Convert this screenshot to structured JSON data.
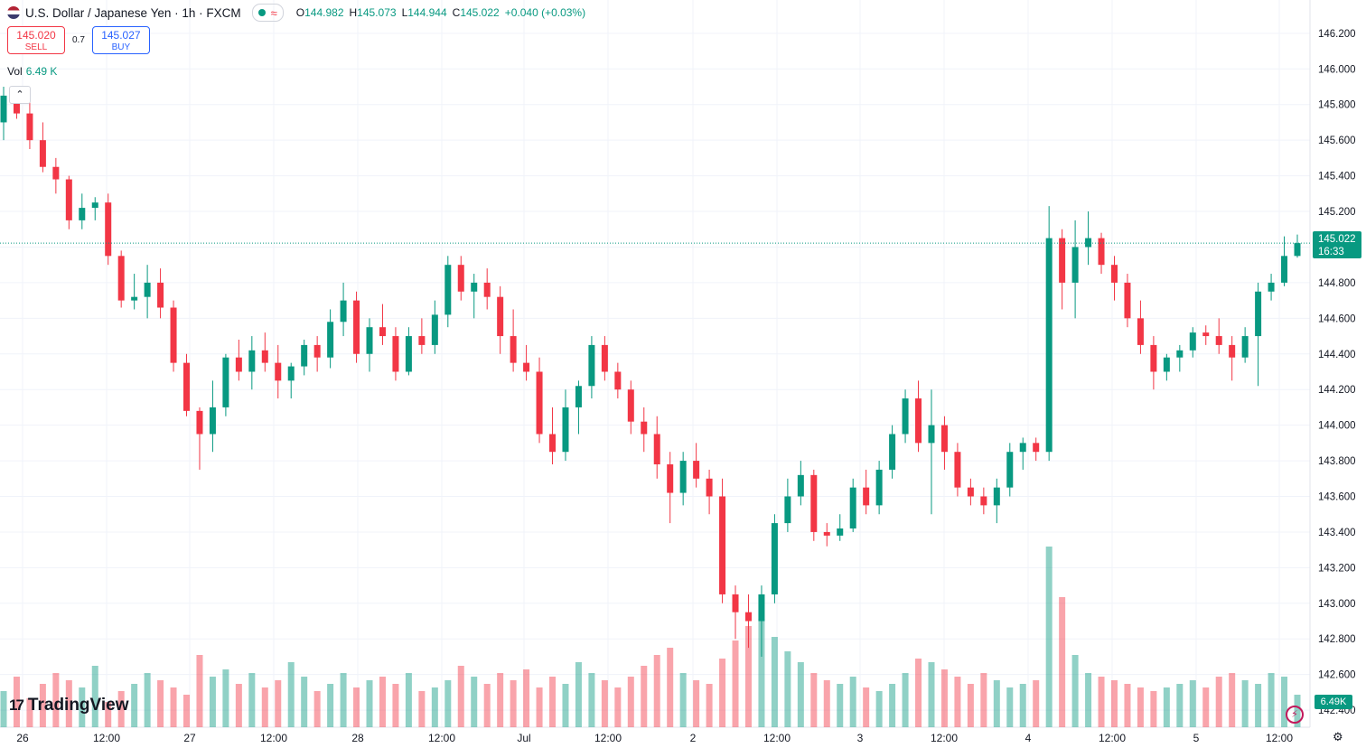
{
  "header": {
    "symbol": "U.S. Dollar / Japanese Yen · 1h · FXCM",
    "approx_icon": "≈",
    "ohlc": {
      "o_label": "O",
      "o": "144.982",
      "h_label": "H",
      "h": "145.073",
      "l_label": "L",
      "l": "144.944",
      "c_label": "C",
      "c": "145.022",
      "change": "+0.040 (+0.03%)"
    }
  },
  "trade": {
    "sell_price": "145.020",
    "sell_label": "SELL",
    "spread": "0.7",
    "buy_price": "145.027",
    "buy_label": "BUY"
  },
  "volume": {
    "label": "Vol",
    "value": "6.49 K",
    "tag": "6.49K"
  },
  "price_tag": {
    "price": "145.022",
    "countdown": "16:33"
  },
  "logo": {
    "mark": "17",
    "text": "TradingView"
  },
  "colors": {
    "up": "#089981",
    "down": "#f23645",
    "grid": "#f0f3fa"
  },
  "chart_data": {
    "type": "candlestick",
    "y_ticks": [
      "146.200",
      "146.000",
      "145.800",
      "145.600",
      "145.400",
      "145.200",
      "145.000",
      "144.800",
      "144.600",
      "144.400",
      "144.200",
      "144.000",
      "143.800",
      "143.600",
      "143.400",
      "143.200",
      "143.000",
      "142.800",
      "142.600",
      "142.400"
    ],
    "ylim": [
      142.36,
      146.25
    ],
    "x_ticks": [
      "26",
      "12:00",
      "27",
      "12:00",
      "28",
      "12:00",
      "Jul",
      "12:00",
      "2",
      "12:00",
      "3",
      "12:00",
      "4",
      "12:00",
      "5",
      "12:00"
    ],
    "last_price": 145.022,
    "candles": [
      [
        145.7,
        145.9,
        145.6,
        145.85
      ],
      [
        145.85,
        145.9,
        145.72,
        145.75
      ],
      [
        145.75,
        145.85,
        145.55,
        145.6
      ],
      [
        145.6,
        145.7,
        145.42,
        145.45
      ],
      [
        145.45,
        145.5,
        145.3,
        145.38
      ],
      [
        145.38,
        145.4,
        145.1,
        145.15
      ],
      [
        145.15,
        145.3,
        145.1,
        145.22
      ],
      [
        145.22,
        145.28,
        145.15,
        145.25
      ],
      [
        145.25,
        145.3,
        144.9,
        144.95
      ],
      [
        144.95,
        144.98,
        144.66,
        144.7
      ],
      [
        144.7,
        144.85,
        144.65,
        144.72
      ],
      [
        144.72,
        144.9,
        144.6,
        144.8
      ],
      [
        144.8,
        144.88,
        144.6,
        144.66
      ],
      [
        144.66,
        144.7,
        144.3,
        144.35
      ],
      [
        144.35,
        144.4,
        144.05,
        144.08
      ],
      [
        144.08,
        144.1,
        143.75,
        143.95
      ],
      [
        143.95,
        144.25,
        143.85,
        144.1
      ],
      [
        144.1,
        144.4,
        144.05,
        144.38
      ],
      [
        144.38,
        144.48,
        144.25,
        144.3
      ],
      [
        144.3,
        144.5,
        144.2,
        144.42
      ],
      [
        144.42,
        144.52,
        144.3,
        144.35
      ],
      [
        144.35,
        144.45,
        144.15,
        144.25
      ],
      [
        144.25,
        144.35,
        144.15,
        144.33
      ],
      [
        144.33,
        144.48,
        144.28,
        144.45
      ],
      [
        144.45,
        144.5,
        144.3,
        144.38
      ],
      [
        144.38,
        144.65,
        144.32,
        144.58
      ],
      [
        144.58,
        144.8,
        144.5,
        144.7
      ],
      [
        144.7,
        144.75,
        144.35,
        144.4
      ],
      [
        144.4,
        144.6,
        144.3,
        144.55
      ],
      [
        144.55,
        144.68,
        144.45,
        144.5
      ],
      [
        144.5,
        144.55,
        144.25,
        144.3
      ],
      [
        144.3,
        144.55,
        144.28,
        144.5
      ],
      [
        144.5,
        144.6,
        144.4,
        144.45
      ],
      [
        144.45,
        144.7,
        144.4,
        144.62
      ],
      [
        144.62,
        144.95,
        144.55,
        144.9
      ],
      [
        144.9,
        144.95,
        144.7,
        144.75
      ],
      [
        144.75,
        144.85,
        144.6,
        144.8
      ],
      [
        144.8,
        144.88,
        144.65,
        144.72
      ],
      [
        144.72,
        144.78,
        144.4,
        144.5
      ],
      [
        144.5,
        144.65,
        144.3,
        144.35
      ],
      [
        144.35,
        144.45,
        144.25,
        144.3
      ],
      [
        144.3,
        144.38,
        143.9,
        143.95
      ],
      [
        143.95,
        144.1,
        143.78,
        143.85
      ],
      [
        143.85,
        144.2,
        143.8,
        144.1
      ],
      [
        144.1,
        144.25,
        143.95,
        144.22
      ],
      [
        144.22,
        144.5,
        144.15,
        144.45
      ],
      [
        144.45,
        144.5,
        144.25,
        144.3
      ],
      [
        144.3,
        144.35,
        144.15,
        144.2
      ],
      [
        144.2,
        144.25,
        143.95,
        144.02
      ],
      [
        144.02,
        144.1,
        143.85,
        143.95
      ],
      [
        143.95,
        144.05,
        143.7,
        143.78
      ],
      [
        143.78,
        143.85,
        143.45,
        143.62
      ],
      [
        143.62,
        143.85,
        143.55,
        143.8
      ],
      [
        143.8,
        143.9,
        143.65,
        143.7
      ],
      [
        143.7,
        143.75,
        143.5,
        143.6
      ],
      [
        143.6,
        143.7,
        143.0,
        143.05
      ],
      [
        143.05,
        143.1,
        142.8,
        142.95
      ],
      [
        142.95,
        143.05,
        142.75,
        142.9
      ],
      [
        142.9,
        143.1,
        142.7,
        143.05
      ],
      [
        143.05,
        143.5,
        143.0,
        143.45
      ],
      [
        143.45,
        143.7,
        143.4,
        143.6
      ],
      [
        143.6,
        143.8,
        143.55,
        143.72
      ],
      [
        143.72,
        143.75,
        143.35,
        143.4
      ],
      [
        143.4,
        143.45,
        143.32,
        143.38
      ],
      [
        143.38,
        143.5,
        143.35,
        143.42
      ],
      [
        143.42,
        143.7,
        143.4,
        143.65
      ],
      [
        143.65,
        143.75,
        143.5,
        143.55
      ],
      [
        143.55,
        143.8,
        143.5,
        143.75
      ],
      [
        143.75,
        144.0,
        143.7,
        143.95
      ],
      [
        143.95,
        144.2,
        143.9,
        144.15
      ],
      [
        144.15,
        144.25,
        143.85,
        143.9
      ],
      [
        143.9,
        144.2,
        143.5,
        144.0
      ],
      [
        144.0,
        144.05,
        143.75,
        143.85
      ],
      [
        143.85,
        143.9,
        143.6,
        143.65
      ],
      [
        143.65,
        143.7,
        143.55,
        143.6
      ],
      [
        143.6,
        143.65,
        143.5,
        143.55
      ],
      [
        143.55,
        143.7,
        143.45,
        143.65
      ],
      [
        143.65,
        143.9,
        143.6,
        143.85
      ],
      [
        143.85,
        143.93,
        143.75,
        143.9
      ],
      [
        143.9,
        143.93,
        143.8,
        143.85
      ],
      [
        143.85,
        145.23,
        143.8,
        145.05
      ],
      [
        145.05,
        145.1,
        144.65,
        144.8
      ],
      [
        144.8,
        145.15,
        144.6,
        145.0
      ],
      [
        145.0,
        145.2,
        144.9,
        145.05
      ],
      [
        145.05,
        145.08,
        144.85,
        144.9
      ],
      [
        144.9,
        144.95,
        144.7,
        144.8
      ],
      [
        144.8,
        144.85,
        144.55,
        144.6
      ],
      [
        144.6,
        144.7,
        144.4,
        144.45
      ],
      [
        144.45,
        144.5,
        144.2,
        144.3
      ],
      [
        144.3,
        144.4,
        144.25,
        144.38
      ],
      [
        144.38,
        144.45,
        144.3,
        144.42
      ],
      [
        144.42,
        144.55,
        144.38,
        144.52
      ],
      [
        144.52,
        144.56,
        144.45,
        144.5
      ],
      [
        144.5,
        144.6,
        144.4,
        144.45
      ],
      [
        144.45,
        144.5,
        144.25,
        144.38
      ],
      [
        144.38,
        144.55,
        144.35,
        144.5
      ],
      [
        144.5,
        144.8,
        144.22,
        144.75
      ],
      [
        144.75,
        144.85,
        144.7,
        144.8
      ],
      [
        144.8,
        145.06,
        144.78,
        144.95
      ],
      [
        144.95,
        145.07,
        144.94,
        145.022
      ]
    ],
    "volumes": [
      20,
      28,
      16,
      24,
      30,
      26,
      22,
      34,
      14,
      20,
      24,
      30,
      26,
      22,
      18,
      40,
      28,
      32,
      24,
      30,
      22,
      26,
      36,
      28,
      20,
      24,
      30,
      22,
      26,
      28,
      24,
      30,
      20,
      22,
      26,
      34,
      28,
      24,
      30,
      26,
      32,
      22,
      28,
      24,
      36,
      30,
      26,
      22,
      28,
      34,
      40,
      44,
      30,
      26,
      24,
      38,
      48,
      56,
      60,
      50,
      42,
      36,
      30,
      26,
      24,
      28,
      22,
      20,
      24,
      30,
      38,
      36,
      32,
      28,
      24,
      30,
      26,
      22,
      24,
      26,
      100,
      72,
      40,
      30,
      28,
      26,
      24,
      22,
      20,
      22,
      24,
      26,
      22,
      28,
      30,
      26,
      24,
      30,
      28,
      18
    ]
  }
}
